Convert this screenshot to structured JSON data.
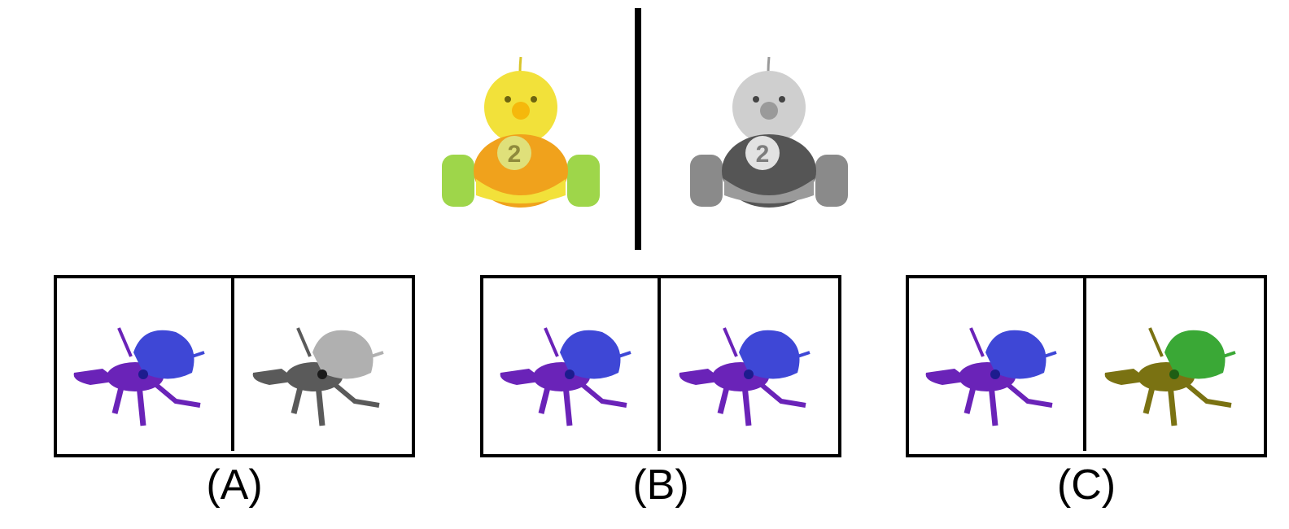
{
  "example": {
    "source_toy": {
      "icon": "toy-car-chick-icon",
      "style": "color",
      "number": "2",
      "colors": {
        "head": "#f2e13a",
        "body": "#f0a21c",
        "wheels": "#9ed64a",
        "beak": "#f5b80c"
      }
    },
    "target_toy": {
      "icon": "toy-car-chick-icon",
      "style": "grayscale",
      "number": "2",
      "colors": {
        "head": "#cfcfcf",
        "body": "#555555",
        "wheels": "#8a8a8a",
        "beak": "#9a9a9a"
      }
    }
  },
  "options": [
    {
      "label": "(A)",
      "left_image": {
        "icon": "hermit-crab-icon",
        "colors": {
          "shell": "#3e47d6",
          "body": "#6a23b8"
        }
      },
      "right_image": {
        "icon": "hermit-crab-icon",
        "colors": {
          "shell": "#b0b0b0",
          "body": "#5a5a5a"
        }
      }
    },
    {
      "label": "(B)",
      "left_image": {
        "icon": "hermit-crab-icon",
        "colors": {
          "shell": "#3e47d6",
          "body": "#6a23b8"
        }
      },
      "right_image": {
        "icon": "hermit-crab-icon",
        "colors": {
          "shell": "#3e47d6",
          "body": "#6a23b8"
        }
      }
    },
    {
      "label": "(C)",
      "left_image": {
        "icon": "hermit-crab-icon",
        "colors": {
          "shell": "#3e47d6",
          "body": "#6a23b8"
        }
      },
      "right_image": {
        "icon": "hermit-crab-icon",
        "colors": {
          "shell": "#3aa836",
          "body": "#7a7212"
        }
      }
    }
  ]
}
